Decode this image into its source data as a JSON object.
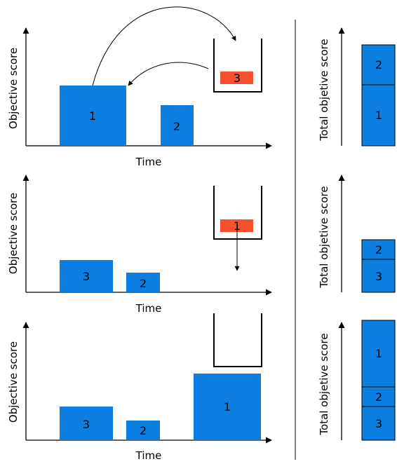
{
  "labels": {
    "x_axis": "Time",
    "y_axis": "Objective score",
    "total_axis": "Total objetive score"
  },
  "colors": {
    "block": "#0a7fe0",
    "removed_block": "#f5512e",
    "line": "#000000"
  },
  "panels": [
    {
      "timeline_blocks": [
        "1",
        "2"
      ],
      "bin_block": "3",
      "arrows": [
        "1 → bin",
        "bin → timeline"
      ],
      "total_stack": [
        "2",
        "1"
      ]
    },
    {
      "timeline_blocks": [
        "3",
        "2"
      ],
      "bin_block": "1",
      "arrows": [
        "bin ↓"
      ],
      "total_stack": [
        "2",
        "3"
      ]
    },
    {
      "timeline_blocks": [
        "3",
        "2",
        "1"
      ],
      "bin_block": "",
      "arrows": [],
      "total_stack": [
        "1",
        "2",
        "3"
      ]
    }
  ]
}
